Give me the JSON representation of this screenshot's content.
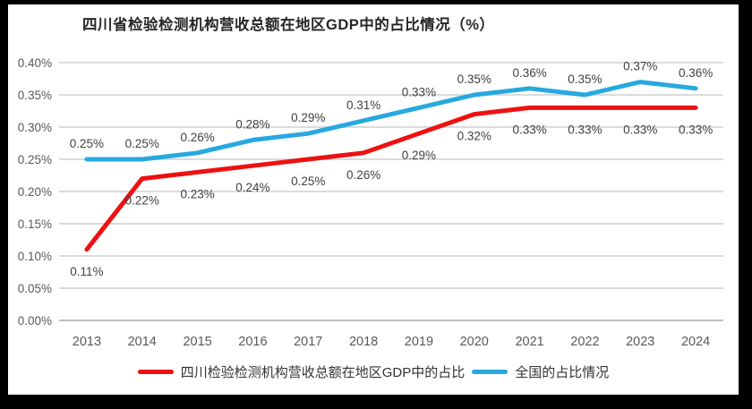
{
  "title": "四川省检验检测机构营收总额在地区GDP中的占比情况（%）",
  "chart_data": {
    "type": "line",
    "categories": [
      "2013",
      "2014",
      "2015",
      "2016",
      "2017",
      "2018",
      "2019",
      "2020",
      "2021",
      "2022",
      "2023",
      "2024"
    ],
    "series": [
      {
        "name": "四川检验检测机构营收总额在地区GDP中的占比",
        "color": "#EE1111",
        "values": [
          0.11,
          0.22,
          0.23,
          0.24,
          0.25,
          0.26,
          0.29,
          0.32,
          0.33,
          0.33,
          0.33,
          0.33
        ],
        "labels": [
          "0.11%",
          "0.22%",
          "0.23%",
          "0.24%",
          "0.25%",
          "0.26%",
          "0.29%",
          "0.32%",
          "0.33%",
          "0.33%",
          "0.33%",
          "0.33%"
        ],
        "label_position": "below"
      },
      {
        "name": "全国的占比情况",
        "color": "#27A9DF",
        "values": [
          0.25,
          0.25,
          0.26,
          0.28,
          0.29,
          0.31,
          0.33,
          0.35,
          0.36,
          0.35,
          0.37,
          0.36
        ],
        "labels": [
          "0.25%",
          "0.25%",
          "0.26%",
          "0.28%",
          "0.29%",
          "0.31%",
          "0.33%",
          "0.35%",
          "0.36%",
          "0.35%",
          "0.37%",
          "0.36%"
        ],
        "label_position": "above"
      }
    ],
    "xlabel": "",
    "ylabel": "",
    "ylim": [
      0,
      0.4
    ],
    "ytick_step": 0.05,
    "yticks": [
      "0.00%",
      "0.05%",
      "0.10%",
      "0.15%",
      "0.20%",
      "0.25%",
      "0.30%",
      "0.35%",
      "0.40%"
    ],
    "grid": true,
    "legend_position": "bottom",
    "colors": {
      "gridline": "#DBDBDB",
      "baseline": "#BFBFBF",
      "tick_text": "#595959",
      "data_label_text": "#404040"
    }
  }
}
